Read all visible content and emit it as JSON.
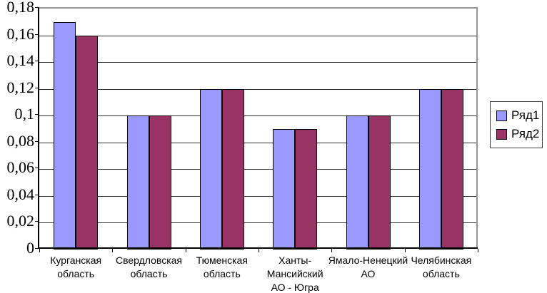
{
  "chart_data": {
    "type": "bar",
    "title": "",
    "xlabel": "",
    "ylabel": "",
    "categories": [
      "Курганская область",
      "Свердловская область",
      "Тюменская область",
      "Ханты-Мансийский АО - Югра",
      "Ямало-Ненецкий АО",
      "Челябинская область"
    ],
    "category_label_lines": [
      [
        "Курганская",
        "область"
      ],
      [
        "Свердловская",
        "область"
      ],
      [
        "Тюменская",
        "область"
      ],
      [
        "Ханты-",
        "Мансийский",
        "АО - Югра"
      ],
      [
        "Ямало-Ненецкий",
        "АО"
      ],
      [
        "Челябинская",
        "область"
      ]
    ],
    "series": [
      {
        "name": "Ряд1",
        "color": "#9999FF",
        "values": [
          0.17,
          0.1,
          0.12,
          0.09,
          0.1,
          0.12
        ]
      },
      {
        "name": "Ряд2",
        "color": "#993366",
        "values": [
          0.16,
          0.1,
          0.12,
          0.09,
          0.1,
          0.12
        ]
      }
    ],
    "ylim": [
      0,
      0.18
    ],
    "ytick_step": 0.02,
    "ytick_labels_bottom_to_top": [
      "0",
      "0,02",
      "0,04",
      "0,06",
      "0,08",
      "0,1",
      "0,12",
      "0,14",
      "0,16",
      "0,18"
    ],
    "grid": true,
    "legend_position": "right",
    "colors": {
      "series1_fill": "#9999FF",
      "series2_fill": "#993366",
      "bar_border": "#000000",
      "gridline": "#303030",
      "axis": "#000000",
      "plot_border": "#969696",
      "background": "#FFFFFF",
      "text": "#000000"
    }
  }
}
